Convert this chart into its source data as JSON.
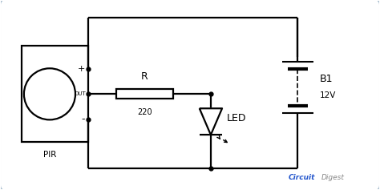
{
  "bg_color": "#ffffff",
  "border_color": "#aabfcf",
  "line_color": "#000000",
  "line_width": 1.6,
  "pir_label": "PIR",
  "resistor_label": "R",
  "resistor_value": "220",
  "battery_label": "B1",
  "battery_value": "12V",
  "led_label": "LED",
  "circuit_color": "#2255cc",
  "digest_color": "#888888"
}
